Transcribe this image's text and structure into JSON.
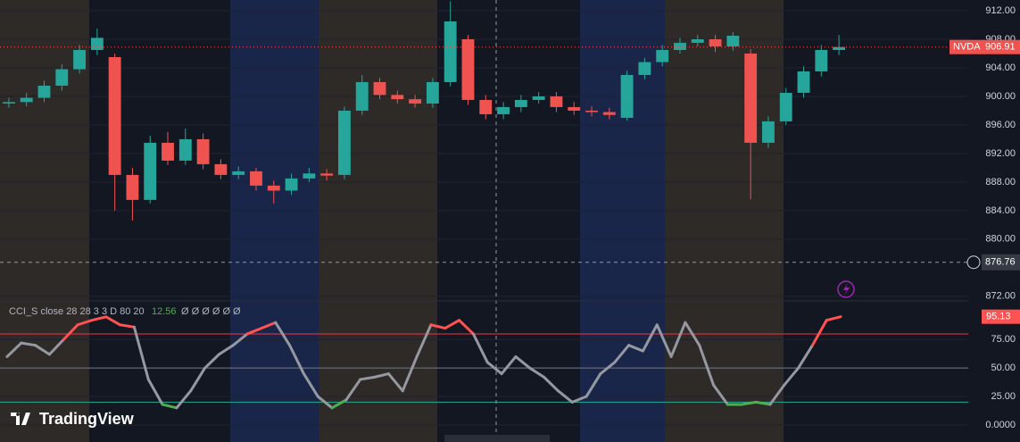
{
  "chart_data": [
    {
      "type": "candlestick",
      "symbol": "NVDA",
      "watermark": "TradingView",
      "open": [
        899.0,
        899.2,
        899.8,
        901.5,
        903.8,
        906.5,
        905.5,
        889.0,
        885.5,
        893.5,
        891.0,
        894.0,
        890.5,
        889.0,
        889.5,
        887.5,
        886.8,
        888.5,
        889.2,
        889.0,
        898.0,
        902.0,
        900.2,
        899.6,
        899.0,
        902.0,
        908.0,
        899.5,
        897.5,
        898.5,
        899.5,
        900.0,
        898.5,
        898.0,
        897.8,
        897.0,
        903.0,
        904.8,
        906.5,
        907.5,
        908.0,
        907.0,
        906.0,
        893.5,
        896.5,
        900.5,
        903.5,
        906.5
      ],
      "high": [
        899.8,
        900.5,
        902.2,
        904.5,
        907.2,
        909.5,
        906.0,
        890.0,
        894.5,
        895.0,
        895.5,
        894.8,
        891.2,
        890.2,
        890.0,
        888.2,
        889.2,
        890.0,
        889.8,
        898.6,
        903.0,
        902.6,
        900.8,
        900.2,
        902.6,
        913.3,
        908.6,
        900.2,
        899.2,
        900.2,
        900.6,
        900.6,
        899.2,
        898.6,
        898.4,
        903.6,
        905.4,
        907.2,
        908.2,
        908.6,
        908.6,
        909.0,
        906.6,
        897.2,
        901.2,
        904.2,
        907.2,
        908.6
      ],
      "low": [
        898.4,
        898.6,
        899.2,
        900.8,
        903.2,
        905.8,
        884.0,
        882.6,
        885.0,
        890.4,
        890.4,
        889.8,
        888.4,
        888.4,
        886.8,
        885.0,
        886.2,
        888.0,
        888.2,
        888.4,
        897.4,
        899.6,
        899.0,
        898.4,
        898.4,
        901.4,
        898.8,
        896.8,
        896.8,
        897.8,
        899.0,
        897.8,
        897.4,
        897.2,
        896.8,
        896.6,
        902.4,
        904.2,
        906.0,
        907.0,
        906.2,
        906.4,
        885.6,
        892.8,
        896.0,
        899.8,
        902.8,
        905.8
      ],
      "close": [
        899.2,
        899.8,
        901.5,
        903.8,
        906.5,
        908.2,
        889.0,
        885.5,
        893.5,
        891.0,
        894.0,
        890.5,
        889.0,
        889.5,
        887.5,
        886.8,
        888.5,
        889.2,
        888.9,
        898.0,
        902.0,
        900.2,
        899.6,
        899.0,
        902.0,
        910.5,
        899.5,
        897.5,
        898.5,
        899.5,
        900.0,
        898.5,
        898.0,
        897.8,
        897.4,
        903.0,
        904.8,
        906.5,
        907.5,
        908.0,
        907.0,
        908.5,
        893.5,
        896.5,
        900.5,
        903.5,
        906.5,
        906.91
      ],
      "up_color": "#26a69a",
      "down_color": "#ef5350",
      "ylim": [
        871.6,
        913.5
      ],
      "yticks": [
        {
          "value": 872,
          "label": "872.00"
        },
        {
          "value": 880,
          "label": "880.00"
        },
        {
          "value": 884,
          "label": "884.00"
        },
        {
          "value": 888,
          "label": "888.00"
        },
        {
          "value": 892,
          "label": "892.00"
        },
        {
          "value": 896,
          "label": "896.00"
        },
        {
          "value": 900,
          "label": "900.00"
        },
        {
          "value": 904,
          "label": "904.00"
        },
        {
          "value": 908,
          "label": "908.00"
        },
        {
          "value": 912,
          "label": "912.00"
        }
      ],
      "crosshair_y": 876.76,
      "grid": true
    },
    {
      "type": "line",
      "indicator_label": "CCI_S close 28 28 3 3 D 80 20",
      "legend_value": 12.56,
      "empty_values": "Ø Ø Ø Ø Ø Ø",
      "values": [
        60,
        72,
        70,
        62,
        75,
        88,
        92,
        95,
        88,
        86,
        40,
        18,
        15,
        30,
        50,
        62,
        70,
        80,
        85,
        90,
        70,
        45,
        25,
        15,
        22,
        40,
        42,
        45,
        30,
        60,
        88,
        85,
        92,
        80,
        55,
        45,
        60,
        50,
        42,
        30,
        20,
        25,
        45,
        55,
        70,
        65,
        88,
        60,
        90,
        70,
        35,
        18,
        18,
        20,
        18,
        35,
        50,
        70,
        92,
        95.13
      ],
      "levels": [
        {
          "value": 80,
          "color": "#f23645"
        },
        {
          "value": 50,
          "color": "#787b86"
        },
        {
          "value": 20,
          "color": "#22ab94"
        }
      ],
      "above_color": "#ff5252",
      "below_color": "#4caf50",
      "mid_color": "#9598a1",
      "ylim": [
        -15,
        109
      ],
      "yticks": [
        {
          "value": 0,
          "label": "0.0000"
        },
        {
          "value": 25,
          "label": "25.00"
        },
        {
          "value": 50,
          "label": "50.00"
        },
        {
          "value": 75,
          "label": "75.00"
        }
      ],
      "grid": true
    }
  ]
}
